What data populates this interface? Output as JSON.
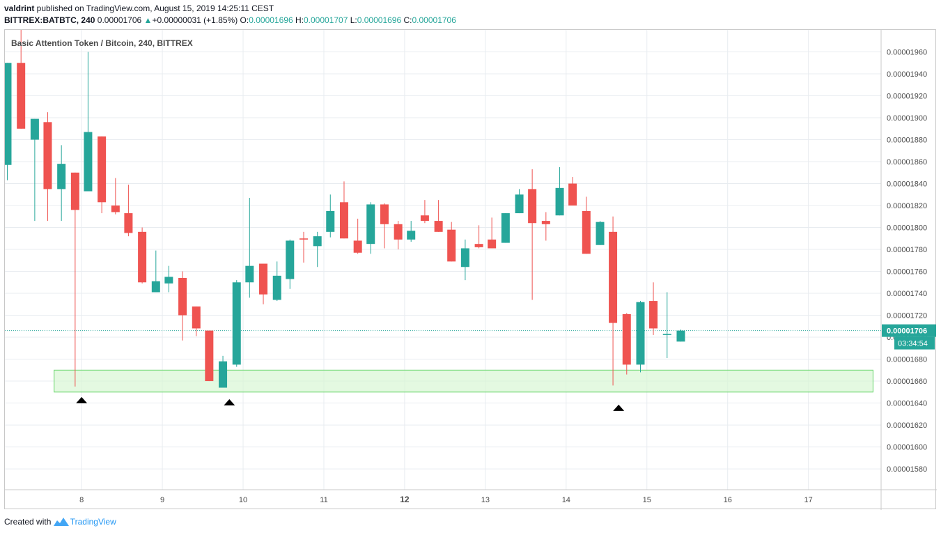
{
  "header": {
    "author": "valdrint",
    "published_text": " published on TradingView.com, August 15, 2019 14:25:11 CEST",
    "symbol": "BITTREX:BATBTC, 240",
    "last_price": "0.00001706",
    "change_arrow": "▲",
    "change": "+0.00000031 (+1.85%)",
    "o_label": "O:",
    "o_value": "0.00001696",
    "h_label": "H:",
    "h_value": "0.00001707",
    "l_label": "L:",
    "l_value": "0.00001696",
    "c_label": "C:",
    "c_value": "0.00001706"
  },
  "footer": {
    "created_with": "Created with",
    "brand": "TradingView"
  },
  "chart_data": {
    "type": "candlestick",
    "title": "Basic Attention Token / Bitcoin, 240, BITTREX",
    "colors": {
      "up": "#26a69a",
      "down": "#ef5350",
      "zone_fill": "#d9f7d4",
      "zone_stroke": "#66d46a",
      "price_line": "#26a69a",
      "grid": "#e8ecf0"
    },
    "x_tick_labels": [
      "8",
      "9",
      "10",
      "11",
      "12",
      "13",
      "14",
      "15",
      "16",
      "17"
    ],
    "bold_x_ticks": [
      "12"
    ],
    "y_tick_labels": [
      "0.00001960",
      "0.00001940",
      "0.00001920",
      "0.00001900",
      "0.00001880",
      "0.00001860",
      "0.00001840",
      "0.00001820",
      "0.00001800",
      "0.00001780",
      "0.00001760",
      "0.00001740",
      "0.00001720",
      "0.00001700",
      "0.00001680",
      "0.00001660",
      "0.00001640",
      "0.00001620",
      "0.00001600",
      "0.00001580"
    ],
    "ylim": [
      1.561e-05,
      1.98e-05
    ],
    "xlim": [
      7.05,
      17.9
    ],
    "current_price": {
      "value": 1.706e-05,
      "label": "0.00001706",
      "countdown": "03:34:54"
    },
    "support_zone": {
      "from_x": 7.66,
      "to_x": 17.8,
      "low": 1.65e-05,
      "high": 1.67e-05
    },
    "markers": [
      {
        "x": 8.0,
        "y": 1.643e-05
      },
      {
        "x": 9.83,
        "y": 1.641e-05
      },
      {
        "x": 14.65,
        "y": 1.636e-05
      }
    ],
    "candles": [
      {
        "x": 7.08,
        "o": 1.857e-05,
        "h": 1.95e-05,
        "l": 1.843e-05,
        "c": 1.95e-05
      },
      {
        "x": 7.25,
        "o": 1.95e-05,
        "h": 1.98e-05,
        "l": 1.89e-05,
        "c": 1.89e-05
      },
      {
        "x": 7.42,
        "o": 1.88e-05,
        "h": 1.899e-05,
        "l": 1.806e-05,
        "c": 1.899e-05
      },
      {
        "x": 7.58,
        "o": 1.896e-05,
        "h": 1.905e-05,
        "l": 1.806e-05,
        "c": 1.835e-05
      },
      {
        "x": 7.75,
        "o": 1.835e-05,
        "h": 1.875e-05,
        "l": 1.806e-05,
        "c": 1.858e-05
      },
      {
        "x": 7.92,
        "o": 1.85e-05,
        "h": 1.85e-05,
        "l": 1.655e-05,
        "c": 1.816e-05
      },
      {
        "x": 8.08,
        "o": 1.833e-05,
        "h": 1.96e-05,
        "l": 1.833e-05,
        "c": 1.887e-05
      },
      {
        "x": 8.25,
        "o": 1.883e-05,
        "h": 1.883e-05,
        "l": 1.813e-05,
        "c": 1.823e-05
      },
      {
        "x": 8.42,
        "o": 1.82e-05,
        "h": 1.845e-05,
        "l": 1.812e-05,
        "c": 1.814e-05
      },
      {
        "x": 8.58,
        "o": 1.813e-05,
        "h": 1.839e-05,
        "l": 1.792e-05,
        "c": 1.795e-05
      },
      {
        "x": 8.75,
        "o": 1.796e-05,
        "h": 1.8e-05,
        "l": 1.749e-05,
        "c": 1.75e-05
      },
      {
        "x": 8.92,
        "o": 1.741e-05,
        "h": 1.779e-05,
        "l": 1.741e-05,
        "c": 1.751e-05
      },
      {
        "x": 9.08,
        "o": 1.749e-05,
        "h": 1.765e-05,
        "l": 1.741e-05,
        "c": 1.755e-05
      },
      {
        "x": 9.25,
        "o": 1.754e-05,
        "h": 1.76e-05,
        "l": 1.697e-05,
        "c": 1.72e-05
      },
      {
        "x": 9.42,
        "o": 1.728e-05,
        "h": 1.728e-05,
        "l": 1.701e-05,
        "c": 1.708e-05
      },
      {
        "x": 9.58,
        "o": 1.706e-05,
        "h": 1.706e-05,
        "l": 1.66e-05,
        "c": 1.66e-05
      },
      {
        "x": 9.75,
        "o": 1.654e-05,
        "h": 1.683e-05,
        "l": 1.654e-05,
        "c": 1.678e-05
      },
      {
        "x": 9.92,
        "o": 1.675e-05,
        "h": 1.752e-05,
        "l": 1.673e-05,
        "c": 1.75e-05
      },
      {
        "x": 10.08,
        "o": 1.75e-05,
        "h": 1.827e-05,
        "l": 1.736e-05,
        "c": 1.765e-05
      },
      {
        "x": 10.25,
        "o": 1.767e-05,
        "h": 1.767e-05,
        "l": 1.73e-05,
        "c": 1.739e-05
      },
      {
        "x": 10.42,
        "o": 1.734e-05,
        "h": 1.769e-05,
        "l": 1.733e-05,
        "c": 1.756e-05
      },
      {
        "x": 10.58,
        "o": 1.753e-05,
        "h": 1.789e-05,
        "l": 1.744e-05,
        "c": 1.788e-05
      },
      {
        "x": 10.75,
        "o": 1.79e-05,
        "h": 1.796e-05,
        "l": 1.768e-05,
        "c": 1.789e-05
      },
      {
        "x": 10.92,
        "o": 1.783e-05,
        "h": 1.796e-05,
        "l": 1.764e-05,
        "c": 1.792e-05
      },
      {
        "x": 11.08,
        "o": 1.796e-05,
        "h": 1.83e-05,
        "l": 1.791e-05,
        "c": 1.815e-05
      },
      {
        "x": 11.25,
        "o": 1.823e-05,
        "h": 1.842e-05,
        "l": 1.79e-05,
        "c": 1.79e-05
      },
      {
        "x": 11.42,
        "o": 1.788e-05,
        "h": 1.808e-05,
        "l": 1.776e-05,
        "c": 1.777e-05
      },
      {
        "x": 11.58,
        "o": 1.785e-05,
        "h": 1.823e-05,
        "l": 1.776e-05,
        "c": 1.821e-05
      },
      {
        "x": 11.75,
        "o": 1.821e-05,
        "h": 1.822e-05,
        "l": 1.781e-05,
        "c": 1.803e-05
      },
      {
        "x": 11.92,
        "o": 1.803e-05,
        "h": 1.806e-05,
        "l": 1.78e-05,
        "c": 1.789e-05
      },
      {
        "x": 12.08,
        "o": 1.789e-05,
        "h": 1.806e-05,
        "l": 1.787e-05,
        "c": 1.797e-05
      },
      {
        "x": 12.25,
        "o": 1.811e-05,
        "h": 1.825e-05,
        "l": 1.804e-05,
        "c": 1.806e-05
      },
      {
        "x": 12.42,
        "o": 1.806e-05,
        "h": 1.825e-05,
        "l": 1.796e-05,
        "c": 1.796e-05
      },
      {
        "x": 12.58,
        "o": 1.798e-05,
        "h": 1.805e-05,
        "l": 1.769e-05,
        "c": 1.769e-05
      },
      {
        "x": 12.75,
        "o": 1.764e-05,
        "h": 1.789e-05,
        "l": 1.752e-05,
        "c": 1.781e-05
      },
      {
        "x": 12.92,
        "o": 1.785e-05,
        "h": 1.802e-05,
        "l": 1.781e-05,
        "c": 1.782e-05
      },
      {
        "x": 13.08,
        "o": 1.789e-05,
        "h": 1.809e-05,
        "l": 1.781e-05,
        "c": 1.781e-05
      },
      {
        "x": 13.25,
        "o": 1.786e-05,
        "h": 1.813e-05,
        "l": 1.786e-05,
        "c": 1.813e-05
      },
      {
        "x": 13.42,
        "o": 1.813e-05,
        "h": 1.835e-05,
        "l": 1.813e-05,
        "c": 1.83e-05
      },
      {
        "x": 13.58,
        "o": 1.835e-05,
        "h": 1.853e-05,
        "l": 1.734e-05,
        "c": 1.804e-05
      },
      {
        "x": 13.75,
        "o": 1.806e-05,
        "h": 1.814e-05,
        "l": 1.788e-05,
        "c": 1.803e-05
      },
      {
        "x": 13.92,
        "o": 1.811e-05,
        "h": 1.855e-05,
        "l": 1.811e-05,
        "c": 1.836e-05
      },
      {
        "x": 14.08,
        "o": 1.84e-05,
        "h": 1.846e-05,
        "l": 1.82e-05,
        "c": 1.82e-05
      },
      {
        "x": 14.25,
        "o": 1.815e-05,
        "h": 1.828e-05,
        "l": 1.776e-05,
        "c": 1.776e-05
      },
      {
        "x": 14.42,
        "o": 1.784e-05,
        "h": 1.806e-05,
        "l": 1.784e-05,
        "c": 1.805e-05
      },
      {
        "x": 14.58,
        "o": 1.796e-05,
        "h": 1.81e-05,
        "l": 1.656e-05,
        "c": 1.713e-05
      },
      {
        "x": 14.75,
        "o": 1.721e-05,
        "h": 1.722e-05,
        "l": 1.666e-05,
        "c": 1.675e-05
      },
      {
        "x": 14.92,
        "o": 1.675e-05,
        "h": 1.733e-05,
        "l": 1.668e-05,
        "c": 1.732e-05
      },
      {
        "x": 15.08,
        "o": 1.733e-05,
        "h": 1.75e-05,
        "l": 1.702e-05,
        "c": 1.708e-05
      },
      {
        "x": 15.25,
        "o": 1.702e-05,
        "h": 1.741e-05,
        "l": 1.681e-05,
        "c": 1.703e-05
      },
      {
        "x": 15.42,
        "o": 1.696e-05,
        "h": 1.707e-05,
        "l": 1.696e-05,
        "c": 1.706e-05
      }
    ]
  }
}
